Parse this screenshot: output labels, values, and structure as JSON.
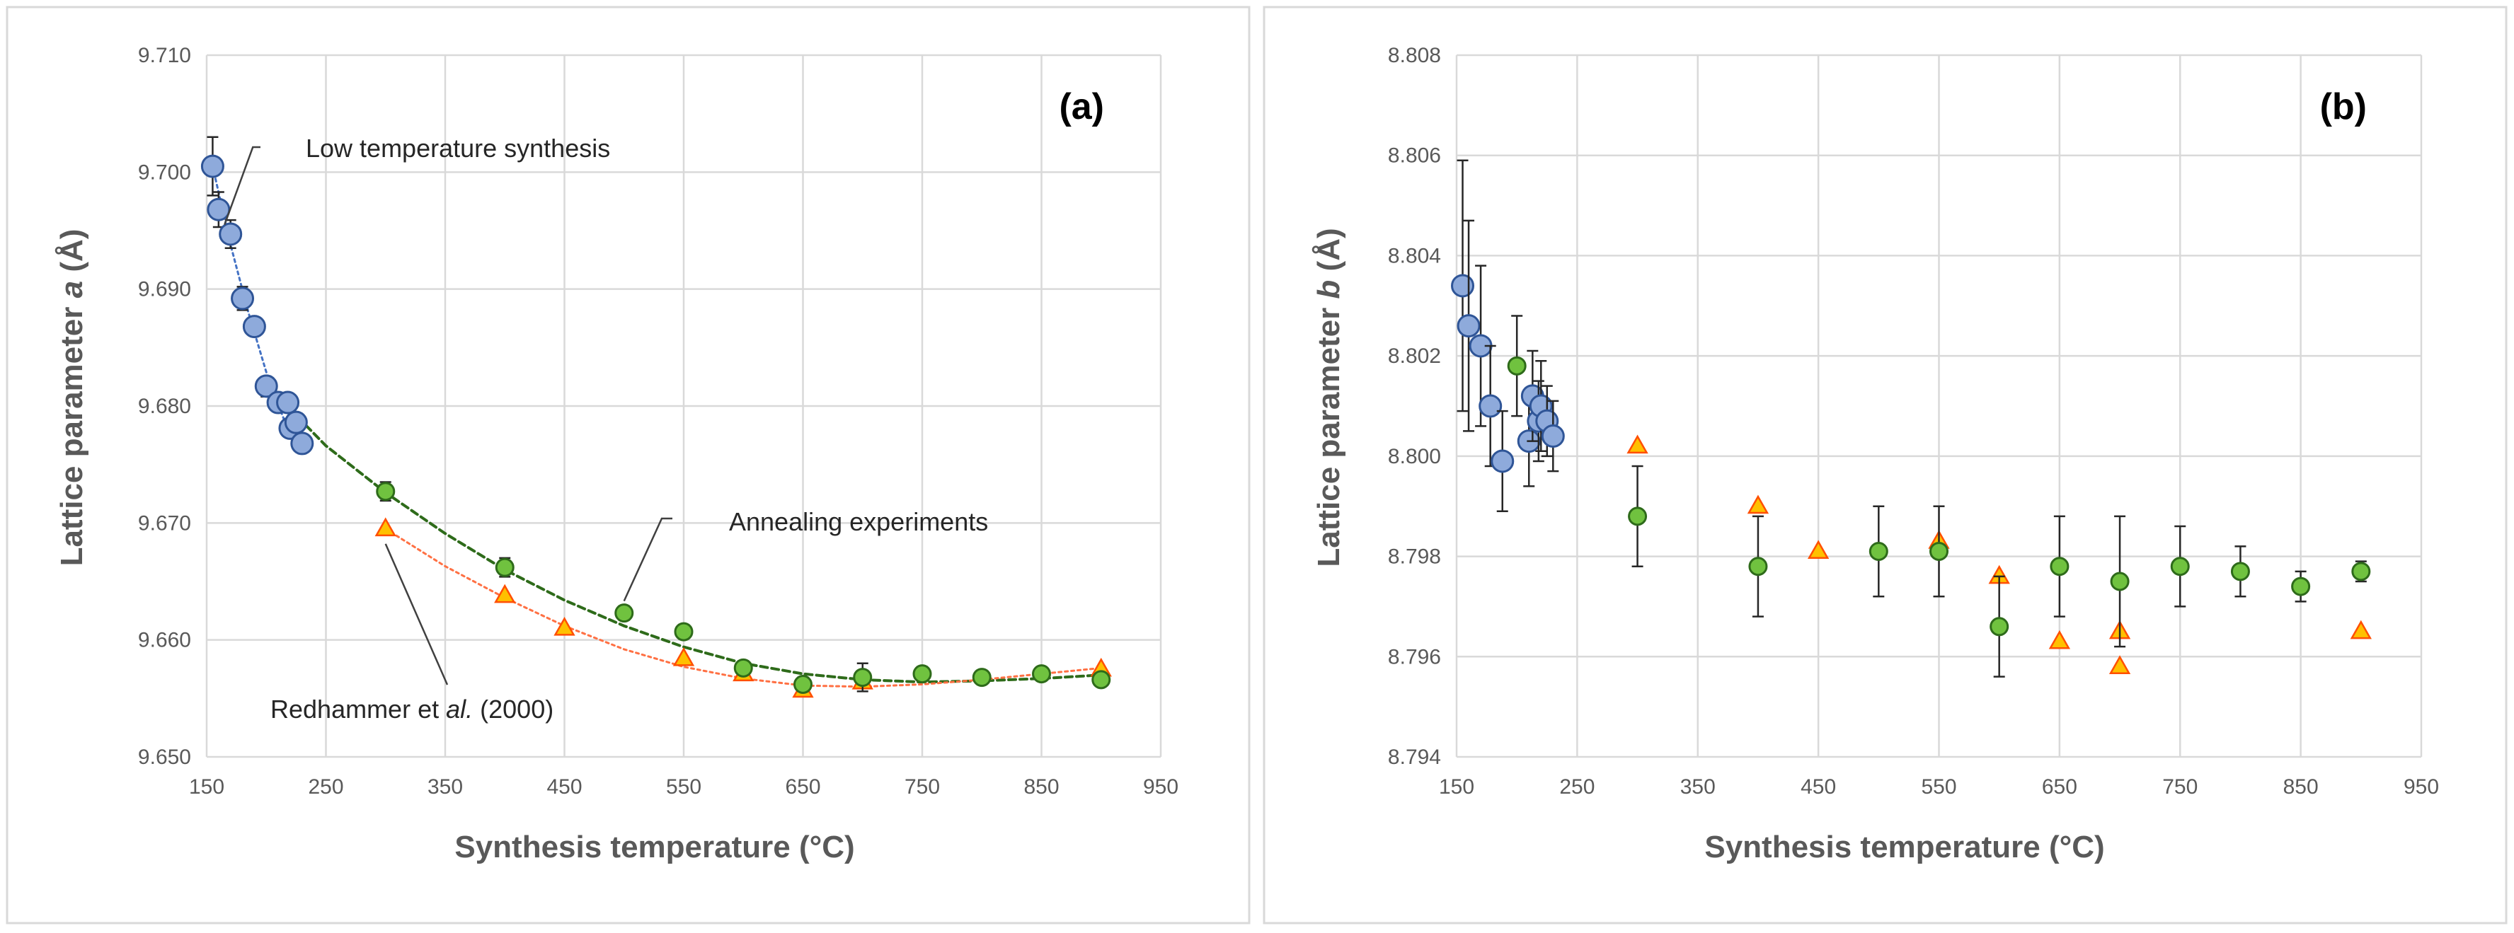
{
  "colors": {
    "blue_fill": "#8eaadb",
    "blue_stroke": "#2f5597",
    "green_fill": "#70c23f",
    "green_stroke": "#2e6b1a",
    "orange_fill": "#ffc000",
    "orange_stroke": "#ff4f00",
    "blue_fit": "#4472c4",
    "green_fit": "#2e6b1a",
    "orange_fit": "#ff7043"
  },
  "chart_data": [
    {
      "type": "scatter",
      "panel": "(a)",
      "xlabel": "Synthesis temperature (°C)",
      "ylabel_prefix": "Lattice parameter ",
      "ylabel_var": "a",
      "ylabel_suffix": " (Å)",
      "xlim": [
        150,
        950
      ],
      "ylim": [
        9.65,
        9.71
      ],
      "xticks": [
        "150",
        "250",
        "350",
        "450",
        "550",
        "650",
        "750",
        "850",
        "950"
      ],
      "yticks": [
        "9.650",
        "9.660",
        "9.670",
        "9.680",
        "9.690",
        "9.700",
        "9.710"
      ],
      "grid": true,
      "series": [
        {
          "name": "Low temperature synthesis",
          "marker": "circle",
          "color": "blue",
          "points": [
            [
              155,
              9.7005,
              0.0025
            ],
            [
              160,
              9.6968,
              0.0015
            ],
            [
              170,
              9.6947,
              0.0012
            ],
            [
              180,
              9.6892,
              0.001
            ],
            [
              190,
              9.6868,
              0.0008
            ],
            [
              200,
              9.6817,
              0.0008
            ],
            [
              210,
              9.6803,
              0.0006
            ],
            [
              218,
              9.6803,
              0.0006
            ],
            [
              220,
              9.6781,
              0.0006
            ],
            [
              225,
              9.6786,
              0.0006
            ],
            [
              230,
              9.6768,
              0.0006
            ]
          ]
        },
        {
          "name": "Annealing experiments",
          "marker": "circle",
          "color": "green",
          "points": [
            [
              200,
              9.6816,
              0.0008
            ],
            [
              300,
              9.6727,
              0.0008
            ],
            [
              400,
              9.6662,
              0.0008
            ],
            [
              500,
              9.6623,
              0.0006
            ],
            [
              550,
              9.6607,
              0.0006
            ],
            [
              600,
              9.6576,
              0.0006
            ],
            [
              650,
              9.6562,
              0.0006
            ],
            [
              700,
              9.6568,
              0.0012
            ],
            [
              750,
              9.6571,
              0.0006
            ],
            [
              800,
              9.6568,
              0.0004
            ],
            [
              850,
              9.6571,
              0.0004
            ],
            [
              900,
              9.6566,
              0.0004
            ]
          ]
        },
        {
          "name": "Redhammer et al. (2000)",
          "marker": "triangle",
          "color": "orange",
          "points": [
            [
              300,
              9.6695
            ],
            [
              400,
              9.6638
            ],
            [
              450,
              9.661
            ],
            [
              550,
              9.6584
            ],
            [
              600,
              9.6571
            ],
            [
              650,
              9.6557
            ],
            [
              700,
              9.6564
            ],
            [
              900,
              9.6575
            ]
          ]
        }
      ],
      "fits": [
        {
          "series": "Low temperature synthesis",
          "color": "blue_fit",
          "style": "dotted",
          "x": [
            155,
            170,
            185,
            200,
            215,
            230
          ],
          "y": [
            9.7005,
            9.6938,
            9.688,
            9.6829,
            9.6788,
            9.6763
          ]
        },
        {
          "series": "Annealing experiments",
          "color": "green_fit",
          "style": "dashed",
          "x": [
            200,
            250,
            300,
            350,
            400,
            450,
            500,
            550,
            600,
            650,
            700,
            750,
            800,
            850,
            900
          ],
          "y": [
            9.6818,
            9.6766,
            9.6726,
            9.6691,
            9.666,
            9.6634,
            9.6612,
            9.6594,
            9.658,
            9.6571,
            9.6566,
            9.6564,
            9.6565,
            9.6567,
            9.657
          ]
        },
        {
          "series": "Redhammer et al. (2000)",
          "color": "orange_fit",
          "style": "dotted",
          "x": [
            300,
            350,
            400,
            450,
            500,
            550,
            600,
            650,
            700,
            750,
            800,
            850,
            900
          ],
          "y": [
            9.6695,
            9.6663,
            9.6636,
            9.6612,
            9.6592,
            9.6577,
            9.6567,
            9.6561,
            9.656,
            9.6562,
            9.6566,
            9.6571,
            9.6576
          ]
        }
      ],
      "annotations": [
        {
          "text": "Low temperature synthesis",
          "target": [
            165,
            9.6955
          ]
        },
        {
          "text": "Annealing experiments",
          "target": [
            500,
            9.662
          ]
        },
        {
          "text": "Redhammer et al. (2000)",
          "text_prefix": "Redhammer et ",
          "text_italic": "al.",
          "text_suffix": " (2000)",
          "target": [
            300,
            9.6693
          ]
        }
      ]
    },
    {
      "type": "scatter",
      "panel": "(b)",
      "xlabel": "Synthesis temperature (°C)",
      "ylabel_prefix": "Lattice parameter ",
      "ylabel_var": "b",
      "ylabel_suffix": " (Å)",
      "xlim": [
        150,
        950
      ],
      "ylim": [
        8.794,
        8.808
      ],
      "xticks": [
        "150",
        "250",
        "350",
        "450",
        "550",
        "650",
        "750",
        "850",
        "950"
      ],
      "yticks": [
        "8.794",
        "8.796",
        "8.798",
        "8.800",
        "8.802",
        "8.804",
        "8.806",
        "8.808"
      ],
      "grid": true,
      "series": [
        {
          "name": "Low temperature synthesis",
          "marker": "circle",
          "color": "blue",
          "points": [
            [
              155,
              8.8034,
              0.0025
            ],
            [
              160,
              8.8026,
              0.0021
            ],
            [
              170,
              8.8022,
              0.0016
            ],
            [
              178,
              8.801,
              0.0012
            ],
            [
              188,
              8.7999,
              0.001
            ],
            [
              210,
              8.8003,
              0.0009
            ],
            [
              213,
              8.8012,
              0.0009
            ],
            [
              218,
              8.8007,
              0.0008
            ],
            [
              220,
              8.801,
              0.0009
            ],
            [
              225,
              8.8007,
              0.0007
            ],
            [
              230,
              8.8004,
              0.0007
            ]
          ]
        },
        {
          "name": "Annealing experiments",
          "marker": "circle",
          "color": "green",
          "points": [
            [
              200,
              8.8018,
              0.001
            ],
            [
              300,
              8.7988,
              0.001
            ],
            [
              400,
              8.7978,
              0.001
            ],
            [
              500,
              8.7981,
              0.0009
            ],
            [
              550,
              8.7981,
              0.0009
            ],
            [
              600,
              8.7966,
              0.001
            ],
            [
              650,
              8.7978,
              0.001
            ],
            [
              700,
              8.7975,
              0.0013
            ],
            [
              750,
              8.7978,
              0.0008
            ],
            [
              800,
              8.7977,
              0.0005
            ],
            [
              850,
              8.7974,
              0.0003
            ],
            [
              900,
              8.7977,
              0.0002
            ]
          ]
        },
        {
          "name": "Redhammer et al. (2000)",
          "marker": "triangle",
          "color": "orange",
          "points": [
            [
              300,
              8.8002
            ],
            [
              400,
              8.799
            ],
            [
              450,
              8.7981
            ],
            [
              550,
              8.7983
            ],
            [
              600,
              8.7976
            ],
            [
              650,
              8.7963
            ],
            [
              700,
              8.7965
            ],
            [
              700,
              8.7958
            ],
            [
              900,
              8.7965
            ]
          ]
        }
      ],
      "fits": [],
      "annotations": []
    }
  ]
}
